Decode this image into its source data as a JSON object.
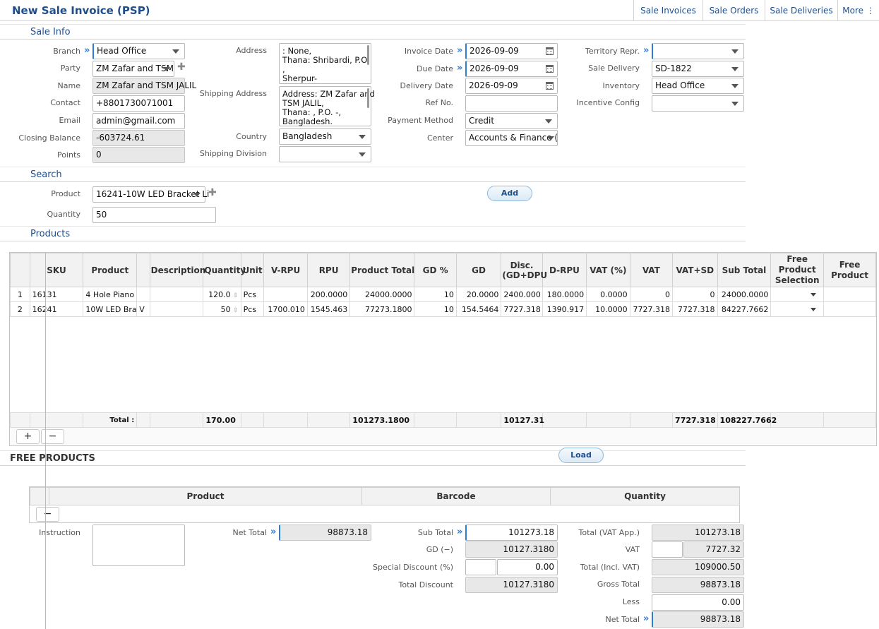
{
  "header": {
    "title": "New Sale Invoice (PSP)",
    "nav": [
      "Sale Invoices",
      "Sale Orders",
      "Sale Deliveries",
      "More ⋮"
    ]
  },
  "sections": {
    "sale_info": "Sale Info",
    "search": "Search",
    "products": "Products",
    "free_products": "FREE PRODUCTS"
  },
  "sale_info": {
    "branch_label": "Branch",
    "branch": "Head Office",
    "party_label": "Party",
    "party": "ZM Zafar and TSM",
    "name_label": "Name",
    "name": "ZM Zafar and TSM JALIL",
    "contact_label": "Contact",
    "contact": "+8801730071001",
    "email_label": "Email",
    "email": "admin@gmail.com",
    "closing_balance_label": "Closing Balance",
    "closing_balance": "-603724.61",
    "points_label": "Points",
    "points": "0",
    "address_label": "Address",
    "address": ": None,\nThana: Shribardi, P.O.\n,\nSherpur-",
    "shipping_address_label": "Shipping Address",
    "shipping_address": "Address: ZM Zafar and\nTSM JALIL,\nThana: , P.O. -,\nBangladesh.",
    "country_label": "Country",
    "country": "Bangladesh",
    "shipping_division_label": "Shipping Division",
    "shipping_division": "",
    "invoice_date_label": "Invoice Date",
    "invoice_date": "2026-09-09",
    "due_date_label": "Due Date",
    "due_date": "2026-09-09",
    "delivery_date_label": "Delivery Date",
    "delivery_date": "2026-09-09",
    "ref_no_label": "Ref No.",
    "ref_no": "",
    "payment_method_label": "Payment Method",
    "payment_method": "Credit",
    "center_label": "Center",
    "center": "Accounts & Finance (",
    "territory_label": "Territory Repr.",
    "territory": "",
    "sale_delivery_label": "Sale Delivery",
    "sale_delivery": "SD-1822",
    "inventory_label": "Inventory",
    "inventory": "Head Office",
    "incentive_label": "Incentive Config",
    "incentive": ""
  },
  "search": {
    "product_label": "Product",
    "product": "16241-10W LED Bracket Li",
    "quantity_label": "Quantity",
    "quantity": "50",
    "add_button": "Add"
  },
  "products": {
    "columns": [
      "SKU",
      "Product",
      "",
      "Description",
      "Quantity",
      "Unit",
      "V-RPU",
      "RPU",
      "Product Total",
      "GD %",
      "GD",
      "Disc.\n(GD+DPU",
      "D-RPU",
      "VAT (%)",
      "VAT",
      "VAT+SD",
      "Sub Total",
      "Free\nProduct\nSelection",
      "Free\nProduct"
    ],
    "rows": [
      {
        "n": "1",
        "sku": "16131",
        "product": "4 Hole Piano",
        "x": "",
        "desc": "",
        "qty": "120.0",
        "unit": "Pcs",
        "vrpu": "",
        "rpu": "200.0000",
        "ptotal": "24000.0000",
        "gdp": "10",
        "gd": "20.0000",
        "disc": "2400.000",
        "drpu": "180.0000",
        "vatp": "0.0000",
        "vat": "0",
        "vatsd": "0",
        "sub": "24000.0000"
      },
      {
        "n": "2",
        "sku": "16241",
        "product": "10W LED Bra",
        "x": "V",
        "desc": "",
        "qty": "50",
        "unit": "Pcs",
        "vrpu": "1700.010",
        "rpu": "1545.463",
        "ptotal": "77273.1800",
        "gdp": "10",
        "gd": "154.5464",
        "disc": "7727.318",
        "drpu": "1390.917",
        "vatp": "10.0000",
        "vat": "7727.318",
        "vatsd": "7727.318",
        "sub": "84227.7662"
      }
    ],
    "footer": {
      "label": "Total :",
      "qty": "170.00",
      "ptotal": "101273.1800",
      "disc": "10127.31",
      "vatsd": "7727.318",
      "sub": "108227.7662"
    }
  },
  "grid_buttons": {
    "add": "+",
    "remove": "−"
  },
  "load_button": "Load",
  "free_products": {
    "columns": [
      "Product",
      "Barcode",
      "Quantity"
    ],
    "remove": "−"
  },
  "totals": {
    "instruction_label": "Instruction",
    "net_total_label": "Net Total",
    "net_total": "98873.18",
    "sub_total_label": "Sub Total",
    "sub_total": "101273.18",
    "gd_label": "GD (−)",
    "gd": "10127.3180",
    "special_discount_label": "Special Discount (%)",
    "special_discount_pct": "",
    "special_discount": "0.00",
    "total_discount_label": "Total Discount",
    "total_discount": "10127.3180",
    "total_vat_app_label": "Total (VAT App.)",
    "total_vat_app": "101273.18",
    "vat_label": "VAT",
    "vat_pct": "",
    "vat": "7727.32",
    "total_incl_vat_label": "Total (Incl. VAT)",
    "total_incl_vat": "109000.50",
    "gross_total_label": "Gross Total",
    "gross_total": "98873.18",
    "less_label": "Less",
    "less": "0.00",
    "net_total2_label": "Net Total",
    "net_total2": "98873.18"
  },
  "colors": {
    "accent": "#2d7dd2",
    "title": "#1f4e8c"
  }
}
